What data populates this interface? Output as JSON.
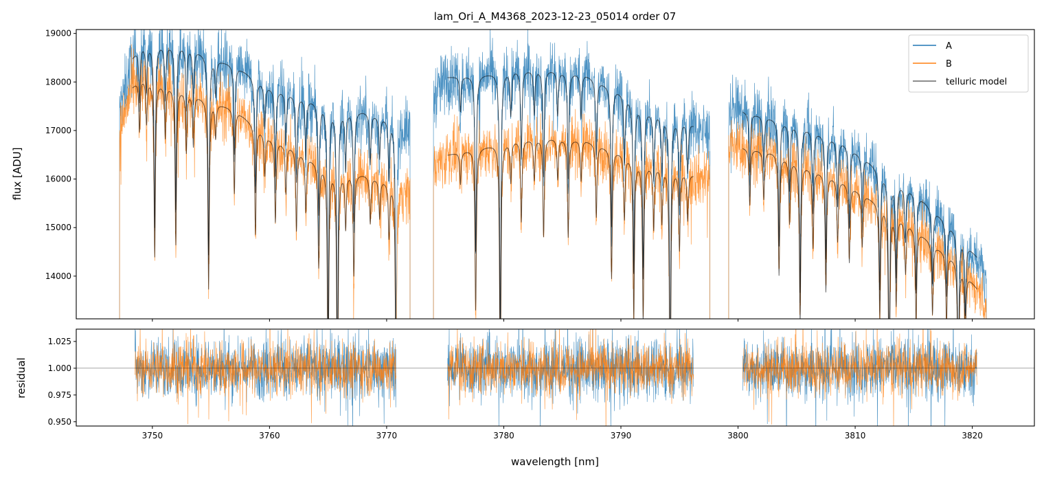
{
  "chart_data": [
    {
      "type": "line",
      "title": "lam_Ori_A_M4368_2023-12-23_05014  order 07",
      "xlabel": "",
      "ylabel": "flux [ADU]",
      "xlim": [
        3743.5,
        3825.3
      ],
      "ylim": [
        13120,
        19080
      ],
      "xticks": [
        3750,
        3760,
        3770,
        3780,
        3790,
        3800,
        3810,
        3820
      ],
      "yticks": [
        14000,
        15000,
        16000,
        17000,
        18000,
        19000
      ],
      "ytick_labels": [
        "14000",
        "15000",
        "16000",
        "17000",
        "18000",
        "19000"
      ],
      "legend": {
        "placement": "top-right",
        "entries": [
          "A",
          "B",
          "telluric model"
        ]
      },
      "colors": {
        "A": "#1f77b4",
        "B": "#ff7f0e",
        "model": "#000000"
      },
      "data_segments": [
        [
          3747.2,
          3772.0
        ],
        [
          3774.0,
          3797.6
        ],
        [
          3799.2,
          3821.2
        ]
      ],
      "model_segments": [
        [
          3748.3,
          3770.8
        ],
        [
          3775.2,
          3796.2
        ],
        [
          3800.4,
          3820.4
        ]
      ],
      "continuum_A": [
        [
          3747.2,
          17400
        ],
        [
          3748.3,
          18500
        ],
        [
          3749,
          18750
        ],
        [
          3751,
          18780
        ],
        [
          3753,
          18750
        ],
        [
          3755,
          18500
        ],
        [
          3757,
          18350
        ],
        [
          3760,
          17900
        ],
        [
          3762,
          17750
        ],
        [
          3764,
          17600
        ],
        [
          3766,
          17450
        ],
        [
          3768,
          17400
        ],
        [
          3770,
          17250
        ],
        [
          3772,
          17000
        ],
        [
          3774,
          17700
        ],
        [
          3775.2,
          18100
        ],
        [
          3778,
          18150
        ],
        [
          3781,
          18250
        ],
        [
          3784,
          18250
        ],
        [
          3787,
          18150
        ],
        [
          3790,
          17800
        ],
        [
          3792,
          17450
        ],
        [
          3794,
          17300
        ],
        [
          3796,
          17150
        ],
        [
          3797.6,
          16900
        ],
        [
          3799.2,
          17500
        ],
        [
          3800.4,
          17400
        ],
        [
          3803,
          17250
        ],
        [
          3806,
          17050
        ],
        [
          3809,
          16750
        ],
        [
          3811,
          16400
        ],
        [
          3813,
          16000
        ],
        [
          3815,
          15750
        ],
        [
          3817,
          15300
        ],
        [
          3818.5,
          14950
        ],
        [
          3820.4,
          14400
        ],
        [
          3821.2,
          14000
        ]
      ],
      "continuum_B": [
        [
          3747.2,
          17000
        ],
        [
          3748.3,
          17900
        ],
        [
          3749,
          18100
        ],
        [
          3751,
          17950
        ],
        [
          3753,
          17800
        ],
        [
          3755,
          17600
        ],
        [
          3757,
          17450
        ],
        [
          3760,
          16850
        ],
        [
          3762,
          16650
        ],
        [
          3764,
          16350
        ],
        [
          3766,
          16150
        ],
        [
          3768,
          16100
        ],
        [
          3770,
          15950
        ],
        [
          3772,
          15700
        ],
        [
          3774,
          16200
        ],
        [
          3775.2,
          16500
        ],
        [
          3778,
          16650
        ],
        [
          3781,
          16800
        ],
        [
          3784,
          16850
        ],
        [
          3787,
          16800
        ],
        [
          3790,
          16550
        ],
        [
          3792,
          16300
        ],
        [
          3794,
          16250
        ],
        [
          3796,
          16100
        ],
        [
          3797.6,
          16000
        ],
        [
          3799.2,
          16700
        ],
        [
          3800.4,
          16650
        ],
        [
          3803,
          16550
        ],
        [
          3806,
          16250
        ],
        [
          3809,
          15950
        ],
        [
          3811,
          15650
        ],
        [
          3813,
          15350
        ],
        [
          3815,
          15000
        ],
        [
          3817,
          14600
        ],
        [
          3818.5,
          14350
        ],
        [
          3820.4,
          13750
        ],
        [
          3821.2,
          13400
        ]
      ],
      "absorption_lines": [
        [
          3748.9,
          0.06
        ],
        [
          3749.5,
          0.05
        ],
        [
          3750.2,
          0.2
        ],
        [
          3751.1,
          0.06
        ],
        [
          3752.0,
          0.18
        ],
        [
          3752.9,
          0.07
        ],
        [
          3753.5,
          0.06
        ],
        [
          3754.8,
          0.22
        ],
        [
          3755.4,
          0.04
        ],
        [
          3757.0,
          0.1
        ],
        [
          3758.8,
          0.13
        ],
        [
          3759.6,
          0.05
        ],
        [
          3760.5,
          0.1
        ],
        [
          3761.4,
          0.06
        ],
        [
          3762.3,
          0.1
        ],
        [
          3763.1,
          0.07
        ],
        [
          3764.2,
          0.13
        ],
        [
          3765.0,
          0.28
        ],
        [
          3765.8,
          0.32
        ],
        [
          3766.5,
          0.07
        ],
        [
          3767.2,
          0.13
        ],
        [
          3768.6,
          0.06
        ],
        [
          3769.4,
          0.05
        ],
        [
          3770.2,
          0.07
        ],
        [
          3770.8,
          0.25
        ],
        [
          3776.3,
          0.04
        ],
        [
          3777.6,
          0.2
        ],
        [
          3779.7,
          0.3
        ],
        [
          3780.6,
          0.05
        ],
        [
          3781.5,
          0.1
        ],
        [
          3782.6,
          0.05
        ],
        [
          3783.4,
          0.12
        ],
        [
          3784.6,
          0.05
        ],
        [
          3785.5,
          0.12
        ],
        [
          3786.6,
          0.05
        ],
        [
          3787.9,
          0.09
        ],
        [
          3789.2,
          0.16
        ],
        [
          3790.3,
          0.08
        ],
        [
          3791.1,
          0.2
        ],
        [
          3791.9,
          0.2
        ],
        [
          3792.8,
          0.08
        ],
        [
          3793.5,
          0.07
        ],
        [
          3794.2,
          0.32
        ],
        [
          3795.0,
          0.1
        ],
        [
          3795.7,
          0.06
        ],
        [
          3801.0,
          0.07
        ],
        [
          3802.2,
          0.06
        ],
        [
          3803.5,
          0.15
        ],
        [
          3804.4,
          0.08
        ],
        [
          3805.3,
          0.2
        ],
        [
          3806.4,
          0.1
        ],
        [
          3807.5,
          0.15
        ],
        [
          3808.5,
          0.08
        ],
        [
          3809.5,
          0.1
        ],
        [
          3810.6,
          0.07
        ],
        [
          3812.1,
          0.15
        ],
        [
          3812.9,
          0.26
        ],
        [
          3813.5,
          0.12
        ],
        [
          3814.3,
          0.07
        ],
        [
          3815.2,
          0.13
        ],
        [
          3816.6,
          0.1
        ],
        [
          3817.8,
          0.1
        ],
        [
          3818.8,
          0.2
        ],
        [
          3819.4,
          0.1
        ]
      ]
    },
    {
      "type": "line",
      "xlabel": "wavelength [nm]",
      "ylabel": "residual",
      "xlim": [
        3743.5,
        3825.3
      ],
      "ylim": [
        0.946,
        1.0365
      ],
      "xticks": [
        3750,
        3760,
        3770,
        3780,
        3790,
        3800,
        3810,
        3820
      ],
      "xtick_labels": [
        "3750",
        "3760",
        "3770",
        "3780",
        "3790",
        "3800",
        "3810",
        "3820"
      ],
      "yticks": [
        0.95,
        0.975,
        1.0,
        1.025
      ],
      "ytick_labels": [
        "0.950",
        "0.975",
        "1.000",
        "1.025"
      ],
      "reference_line": 1.0,
      "residual_segments": [
        [
          3748.5,
          3770.8
        ],
        [
          3775.2,
          3796.2
        ],
        [
          3800.4,
          3820.4
        ]
      ],
      "residual_noise_sigma": {
        "A": 0.014,
        "B": 0.012
      }
    }
  ]
}
